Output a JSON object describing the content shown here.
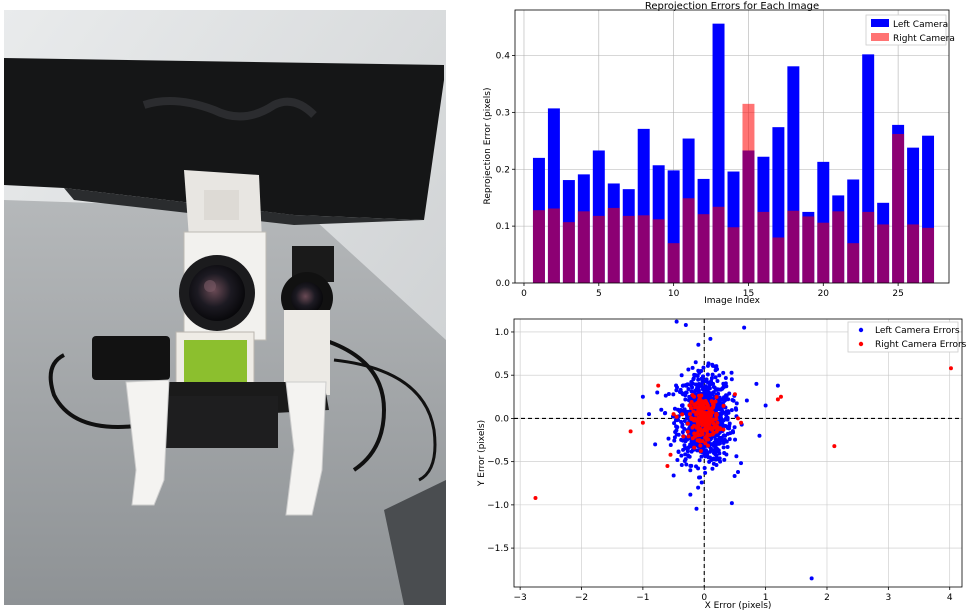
{
  "photo": {
    "description_icon": "camera-rig-photo"
  },
  "chart_data": [
    {
      "type": "bar",
      "title": "Reprojection Errors for Each Image",
      "xlabel": "Image Index",
      "ylabel": "Reprojection Error (pixels)",
      "xlim": [
        -0.6,
        28.4
      ],
      "ylim": [
        0,
        0.48
      ],
      "xticks": [
        0,
        5,
        10,
        15,
        20,
        25
      ],
      "yticks": [
        0.0,
        0.1,
        0.2,
        0.3,
        0.4
      ],
      "grid": true,
      "legend_position": "top-right",
      "categories": [
        1,
        2,
        3,
        4,
        5,
        6,
        7,
        8,
        9,
        10,
        11,
        12,
        13,
        14,
        15,
        16,
        17,
        18,
        19,
        20,
        21,
        22,
        23,
        24,
        25,
        26,
        27
      ],
      "series": [
        {
          "name": "Left Camera",
          "color": "#0000ff",
          "values": [
            0.22,
            0.307,
            0.181,
            0.191,
            0.233,
            0.175,
            0.165,
            0.271,
            0.207,
            0.198,
            0.254,
            0.183,
            0.456,
            0.196,
            0.233,
            0.222,
            0.274,
            0.381,
            0.125,
            0.213,
            0.154,
            0.182,
            0.402,
            0.141,
            0.278,
            0.238,
            0.259
          ]
        },
        {
          "name": "Right Camera",
          "color": "#ff0000",
          "alpha": 0.55,
          "values": [
            0.128,
            0.131,
            0.107,
            0.126,
            0.118,
            0.132,
            0.118,
            0.119,
            0.112,
            0.07,
            0.149,
            0.121,
            0.134,
            0.098,
            0.315,
            0.125,
            0.08,
            0.127,
            0.117,
            0.106,
            0.126,
            0.07,
            0.125,
            0.103,
            0.262,
            0.103,
            0.097
          ]
        }
      ]
    },
    {
      "type": "scatter",
      "xlabel": "X Error (pixels)",
      "ylabel": "Y Error (pixels)",
      "xlim": [
        -3.1,
        4.2
      ],
      "ylim": [
        -1.95,
        1.15
      ],
      "xticks": [
        -3,
        -2,
        -1,
        0,
        1,
        2,
        3,
        4
      ],
      "yticks": [
        1.0,
        0.5,
        0.0,
        -0.5,
        -1.0,
        -1.5
      ],
      "grid": true,
      "reference_lines": "dashed lines at x=0 and y=0",
      "legend_position": "top-right",
      "series": [
        {
          "name": "Left Camera Errors",
          "color": "#0000ff",
          "cluster": {
            "center": [
              0.0,
              0.0
            ],
            "sd": [
              0.22,
              0.26
            ],
            "count": 900
          },
          "outliers": [
            [
              -0.45,
              1.12
            ],
            [
              -0.3,
              1.08
            ],
            [
              0.65,
              1.05
            ],
            [
              0.85,
              0.4
            ],
            [
              1.2,
              0.38
            ],
            [
              -1.0,
              0.25
            ],
            [
              1.75,
              -1.85
            ],
            [
              0.45,
              -0.98
            ],
            [
              -0.1,
              -0.8
            ],
            [
              0.55,
              -0.62
            ],
            [
              -0.7,
              0.1
            ],
            [
              0.9,
              -0.2
            ],
            [
              0.1,
              0.92
            ],
            [
              -0.8,
              -0.3
            ],
            [
              1.0,
              0.15
            ],
            [
              -0.9,
              0.05
            ]
          ]
        },
        {
          "name": "Right Camera Errors",
          "color": "#ff0000",
          "cluster": {
            "center": [
              0.0,
              0.0
            ],
            "sd": [
              0.12,
              0.12
            ],
            "count": 220
          },
          "outliers": [
            [
              -2.75,
              -0.92
            ],
            [
              4.02,
              0.58
            ],
            [
              2.12,
              -0.32
            ],
            [
              1.2,
              0.22
            ],
            [
              1.25,
              0.25
            ],
            [
              -1.2,
              -0.15
            ],
            [
              -0.75,
              0.38
            ],
            [
              -0.6,
              -0.55
            ],
            [
              -1.0,
              -0.05
            ],
            [
              0.5,
              0.28
            ],
            [
              0.6,
              -0.05
            ],
            [
              -0.55,
              -0.42
            ],
            [
              0.55,
              0.0
            ],
            [
              -0.5,
              0.05
            ]
          ]
        }
      ]
    }
  ]
}
